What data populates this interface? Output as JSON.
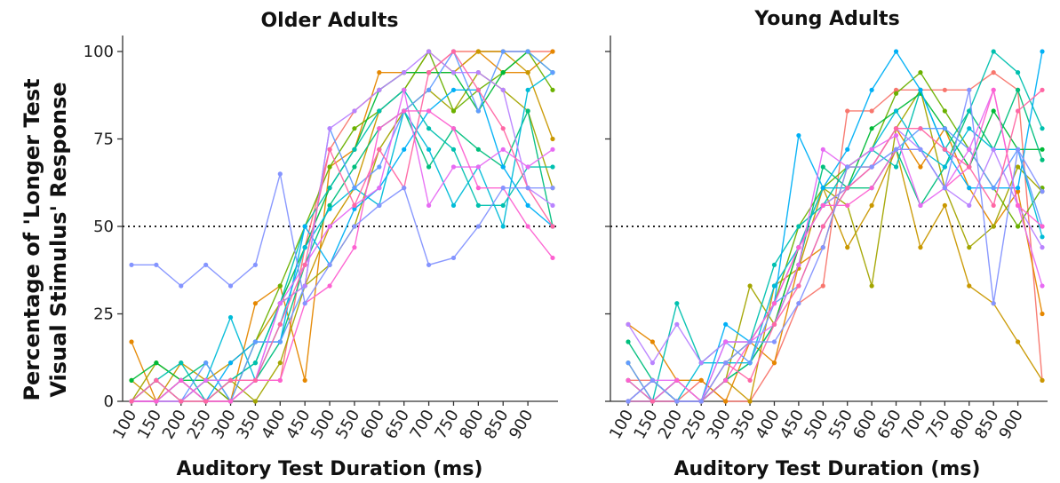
{
  "chart_data": {
    "type": "line",
    "ylabel_lines": [
      "Percentage of 'Longer Test",
      "Visual Stimulus' Response"
    ],
    "xlabel": "Auditory Test Duration (ms)",
    "x": [
      100,
      150,
      200,
      250,
      300,
      350,
      400,
      450,
      500,
      550,
      600,
      650,
      700,
      750,
      800,
      850,
      900,
      950
    ],
    "x_tick_labels": [
      "100",
      "150",
      "200",
      "250",
      "300",
      "350",
      "400",
      "450",
      "500",
      "550",
      "600",
      "650",
      "700",
      "750",
      "800",
      "850",
      "900"
    ],
    "y_ticks": [
      0,
      25,
      50,
      75,
      100
    ],
    "ylim": [
      0,
      100
    ],
    "reference_line_y": 50,
    "grid": false,
    "legend": "none",
    "series_colors": [
      "#f8766d",
      "#e58700",
      "#c99800",
      "#a3a500",
      "#6bb100",
      "#00ba38",
      "#00bf7d",
      "#00c0af",
      "#00bcd8",
      "#00b0f6",
      "#619cff",
      "#b983ff",
      "#e76bf3",
      "#fd61d1",
      "#ff67a4",
      "#8494ff"
    ],
    "panels": [
      {
        "title": "Older Adults",
        "series": [
          {
            "values": [
              0,
              6,
              0,
              6,
              0,
              6,
              6,
              44,
              72,
              83,
              89,
              94,
              94,
              100,
              100,
              100,
              100,
              100
            ]
          },
          {
            "values": [
              17,
              0,
              6,
              0,
              0,
              28,
              33,
              6,
              67,
              72,
              94,
              94,
              94,
              94,
              100,
              94,
              94,
              100
            ]
          },
          {
            "values": [
              6,
              0,
              11,
              6,
              11,
              17,
              28,
              33,
              50,
              61,
              83,
              89,
              100,
              94,
              100,
              100,
              94,
              75
            ]
          },
          {
            "values": [
              0,
              11,
              6,
              0,
              6,
              0,
              11,
              33,
              39,
              50,
              72,
              83,
              89,
              83,
              94,
              89,
              83,
              61
            ]
          },
          {
            "values": [
              0,
              6,
              0,
              6,
              0,
              17,
              33,
              50,
              67,
              78,
              83,
              89,
              100,
              83,
              89,
              94,
              100,
              89
            ]
          },
          {
            "values": [
              6,
              11,
              6,
              6,
              6,
              11,
              28,
              44,
              61,
              72,
              89,
              94,
              94,
              94,
              83,
              94,
              100,
              94
            ]
          },
          {
            "values": [
              0,
              0,
              6,
              11,
              0,
              6,
              17,
              39,
              56,
              67,
              78,
              83,
              67,
              78,
              72,
              67,
              83,
              50
            ]
          },
          {
            "values": [
              0,
              6,
              11,
              0,
              6,
              11,
              28,
              50,
              61,
              72,
              83,
              89,
              78,
              72,
              56,
              56,
              67,
              67
            ]
          },
          {
            "values": [
              0,
              0,
              0,
              6,
              24,
              6,
              22,
              44,
              55,
              61,
              56,
              83,
              72,
              56,
              67,
              50,
              89,
              94
            ]
          },
          {
            "values": [
              0,
              0,
              6,
              0,
              11,
              17,
              17,
              50,
              39,
              55,
              61,
              72,
              83,
              89,
              89,
              67,
              56,
              50
            ]
          },
          {
            "values": [
              0,
              6,
              0,
              11,
              0,
              17,
              17,
              33,
              78,
              61,
              67,
              83,
              89,
              100,
              83,
              100,
              100,
              94
            ]
          },
          {
            "values": [
              0,
              0,
              6,
              0,
              0,
              6,
              28,
              33,
              78,
              83,
              89,
              94,
              100,
              94,
              94,
              89,
              61,
              56
            ]
          },
          {
            "values": [
              0,
              0,
              0,
              6,
              6,
              6,
              28,
              39,
              50,
              56,
              61,
              89,
              56,
              67,
              67,
              72,
              67,
              72
            ]
          },
          {
            "values": [
              0,
              0,
              6,
              0,
              0,
              6,
              6,
              28,
              33,
              44,
              78,
              83,
              83,
              78,
              61,
              61,
              50,
              41
            ]
          },
          {
            "values": [
              0,
              6,
              0,
              0,
              6,
              6,
              22,
              39,
              72,
              56,
              72,
              61,
              94,
              100,
              89,
              78,
              61,
              50
            ]
          },
          {
            "values": [
              39,
              39,
              33,
              39,
              33,
              39,
              65,
              28,
              39,
              50,
              56,
              61,
              39,
              41,
              50,
              61,
              61,
              61
            ]
          }
        ]
      },
      {
        "title": "Young Adults",
        "series": [
          {
            "values": [
              6,
              6,
              0,
              6,
              0,
              0,
              11,
              28,
              33,
              83,
              83,
              89,
              89,
              89,
              89,
              94,
              89,
              6
            ]
          },
          {
            "values": [
              22,
              17,
              6,
              6,
              0,
              17,
              11,
              39,
              44,
              67,
              67,
              78,
              67,
              78,
              61,
              50,
              60,
              25
            ]
          },
          {
            "values": [
              0,
              6,
              0,
              0,
              6,
              0,
              33,
              38,
              61,
              44,
              56,
              72,
              44,
              56,
              33,
              28,
              17,
              6
            ]
          },
          {
            "values": [
              11,
              0,
              6,
              0,
              6,
              33,
              22,
              44,
              61,
              56,
              33,
              78,
              89,
              61,
              44,
              50,
              67,
              60
            ]
          },
          {
            "values": [
              0,
              6,
              0,
              0,
              11,
              17,
              28,
              50,
              61,
              67,
              72,
              88,
              94,
              83,
              72,
              61,
              50,
              61
            ]
          },
          {
            "values": [
              6,
              0,
              0,
              0,
              6,
              11,
              22,
              44,
              56,
              61,
              78,
              83,
              88,
              78,
              67,
              83,
              72,
              72
            ]
          },
          {
            "values": [
              17,
              6,
              0,
              0,
              6,
              11,
              22,
              39,
              67,
              61,
              61,
              72,
              56,
              67,
              83,
              72,
              89,
              69
            ]
          },
          {
            "values": [
              0,
              0,
              28,
              11,
              17,
              17,
              39,
              50,
              56,
              67,
              72,
              67,
              89,
              72,
              83,
              100,
              94,
              78
            ]
          },
          {
            "values": [
              0,
              6,
              0,
              11,
              11,
              11,
              33,
              44,
              61,
              61,
              72,
              83,
              72,
              67,
              78,
              72,
              72,
              47
            ]
          },
          {
            "values": [
              0,
              0,
              6,
              0,
              22,
              17,
              28,
              76,
              61,
              72,
              89,
              100,
              89,
              72,
              61,
              61,
              61,
              100
            ]
          },
          {
            "values": [
              11,
              0,
              0,
              0,
              17,
              11,
              28,
              33,
              50,
              61,
              67,
              72,
              78,
              78,
              72,
              61,
              72,
              50
            ]
          },
          {
            "values": [
              22,
              11,
              22,
              11,
              17,
              17,
              28,
              44,
              56,
              61,
              67,
              78,
              72,
              61,
              56,
              72,
              56,
              44
            ]
          },
          {
            "values": [
              0,
              6,
              6,
              0,
              17,
              17,
              22,
              39,
              72,
              67,
              72,
              76,
              56,
              61,
              72,
              89,
              56,
              33
            ]
          },
          {
            "values": [
              6,
              0,
              6,
              0,
              6,
              17,
              28,
              44,
              56,
              56,
              61,
              72,
              72,
              61,
              67,
              89,
              56,
              50
            ]
          },
          {
            "values": [
              0,
              0,
              0,
              0,
              11,
              6,
              22,
              33,
              50,
              61,
              67,
              78,
              78,
              72,
              67,
              56,
              83,
              89
            ]
          },
          {
            "values": [
              0,
              6,
              0,
              0,
              11,
              17,
              17,
              28,
              44,
              67,
              67,
              72,
              72,
              61,
              89,
              28,
              72,
              60
            ]
          }
        ]
      }
    ]
  }
}
